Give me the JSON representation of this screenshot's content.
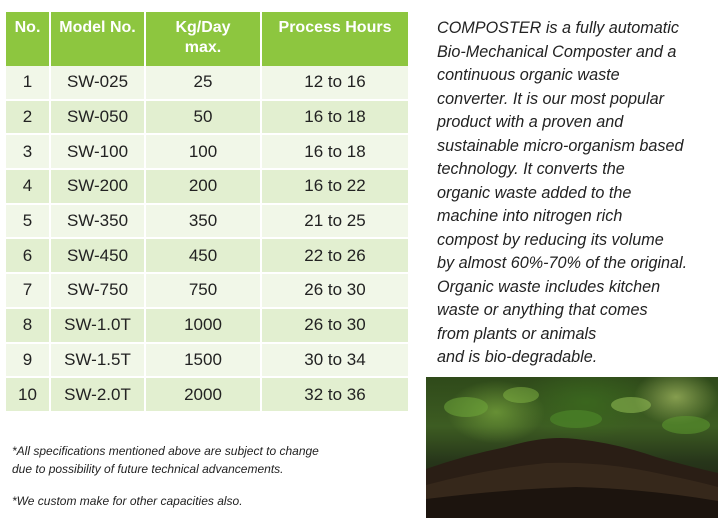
{
  "table": {
    "headers": [
      "No.",
      "Model No.",
      "Kg/Day max.",
      "Process Hours"
    ],
    "rows": [
      [
        "1",
        "SW-025",
        "25",
        "12 to 16"
      ],
      [
        "2",
        "SW-050",
        "50",
        "16 to 18"
      ],
      [
        "3",
        "SW-100",
        "100",
        "16 to 18"
      ],
      [
        "4",
        "SW-200",
        "200",
        "16 to 22"
      ],
      [
        "5",
        "SW-350",
        "350",
        "21 to 25"
      ],
      [
        "6",
        "SW-450",
        "450",
        "22 to 26"
      ],
      [
        "7",
        "SW-750",
        "750",
        "26 to 30"
      ],
      [
        "8",
        "SW-1.0T",
        "1000",
        "26 to 30"
      ],
      [
        "9",
        "SW-1.5T",
        "1500",
        "30 to 34"
      ],
      [
        "10",
        "SW-2.0T",
        "2000",
        "32 to 36"
      ]
    ]
  },
  "description": {
    "lines": [
      "COMPOSTER is a fully automatic",
      "Bio-Mechanical Composter and a",
      "continuous organic waste",
      "converter. It is our most popular",
      "product with a proven and",
      "sustainable micro-organism based",
      "technology. It converts the",
      "organic waste added to the",
      "machine into nitrogen rich",
      "compost by reducing its volume",
      "by almost 60%-70% of the original.",
      "Organic waste includes kitchen",
      "waste or anything that comes",
      "from plants or animals",
      "and is bio-degradable."
    ]
  },
  "notes": {
    "note1_line1": "*All specifications mentioned above are subject to change",
    "note1_line2": "due to possibility of future technical advancements.",
    "note2": "*We custom make for other capacities also."
  },
  "colors": {
    "header_green": "#8dc63f",
    "row_light": "#f1f7e8",
    "row_tint": "#e2efd0"
  }
}
